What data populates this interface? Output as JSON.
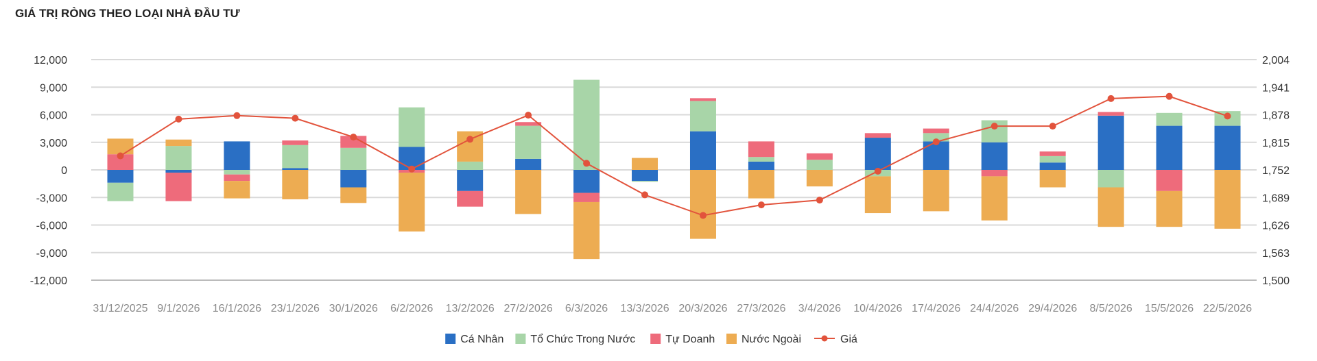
{
  "chart_data": {
    "type": "bar",
    "stacked": true,
    "title": "GIÁ TRỊ RÒNG THEO LOẠI NHÀ ĐẦU TƯ",
    "categories": [
      "31/12/2025",
      "9/1/2026",
      "16/1/2026",
      "23/1/2026",
      "30/1/2026",
      "6/2/2026",
      "13/2/2026",
      "27/2/2026",
      "6/3/2026",
      "13/3/2026",
      "20/3/2026",
      "27/3/2026",
      "3/4/2026",
      "10/4/2026",
      "17/4/2026",
      "24/4/2026",
      "29/4/2026",
      "8/5/2026",
      "15/5/2026",
      "22/5/2026"
    ],
    "ylim": [
      -12000,
      12000
    ],
    "y_ticks": [
      "12,000",
      "9,000",
      "6,000",
      "3,000",
      "0",
      "-3,000",
      "-6,000",
      "-9,000",
      "-12,000"
    ],
    "y2lim": [
      1500,
      2004
    ],
    "y2_ticks": [
      "2,004",
      "1,941",
      "1,878",
      "1,815",
      "1,752",
      "1,689",
      "1,626",
      "1,563",
      "1,500"
    ],
    "grid": true,
    "legend_position": "bottom-center",
    "series": [
      {
        "name": "Cá Nhân",
        "color": "#2a6fc4",
        "values": [
          -1400,
          -300,
          3100,
          200,
          -1900,
          2500,
          -2300,
          1200,
          -2500,
          -1200,
          4200,
          900,
          0,
          3500,
          3100,
          3000,
          800,
          5900,
          4800,
          4800
        ]
      },
      {
        "name": "Tổ Chức Trong Nước",
        "color": "#a8d5a8",
        "values": [
          -2000,
          2600,
          -500,
          2500,
          2400,
          4300,
          900,
          3600,
          9800,
          -100,
          3300,
          500,
          1100,
          -700,
          900,
          2400,
          700,
          -1900,
          1400,
          1600
        ]
      },
      {
        "name": "Tự Doanh",
        "color": "#ee6b7b",
        "values": [
          1700,
          -3100,
          -700,
          500,
          1300,
          -300,
          -1700,
          400,
          -1000,
          0,
          300,
          1700,
          700,
          500,
          500,
          -700,
          500,
          400,
          -2300,
          0
        ]
      },
      {
        "name": "Nước Ngoài",
        "color": "#edac52",
        "values": [
          1700,
          700,
          -1900,
          -3200,
          -1700,
          -6400,
          3300,
          -4800,
          -6200,
          1300,
          -7500,
          -3100,
          -1800,
          -4000,
          -4500,
          -4800,
          -1900,
          -4300,
          -3900,
          -6400
        ]
      }
    ],
    "line_series": {
      "name": "Giá",
      "color": "#e2533c",
      "axis": "right",
      "values": [
        1784,
        1868,
        1876,
        1870,
        1827,
        1754,
        1822,
        1877,
        1767,
        1695,
        1648,
        1672,
        1683,
        1749,
        1816,
        1852,
        1852,
        1915,
        1920,
        1875
      ]
    }
  }
}
